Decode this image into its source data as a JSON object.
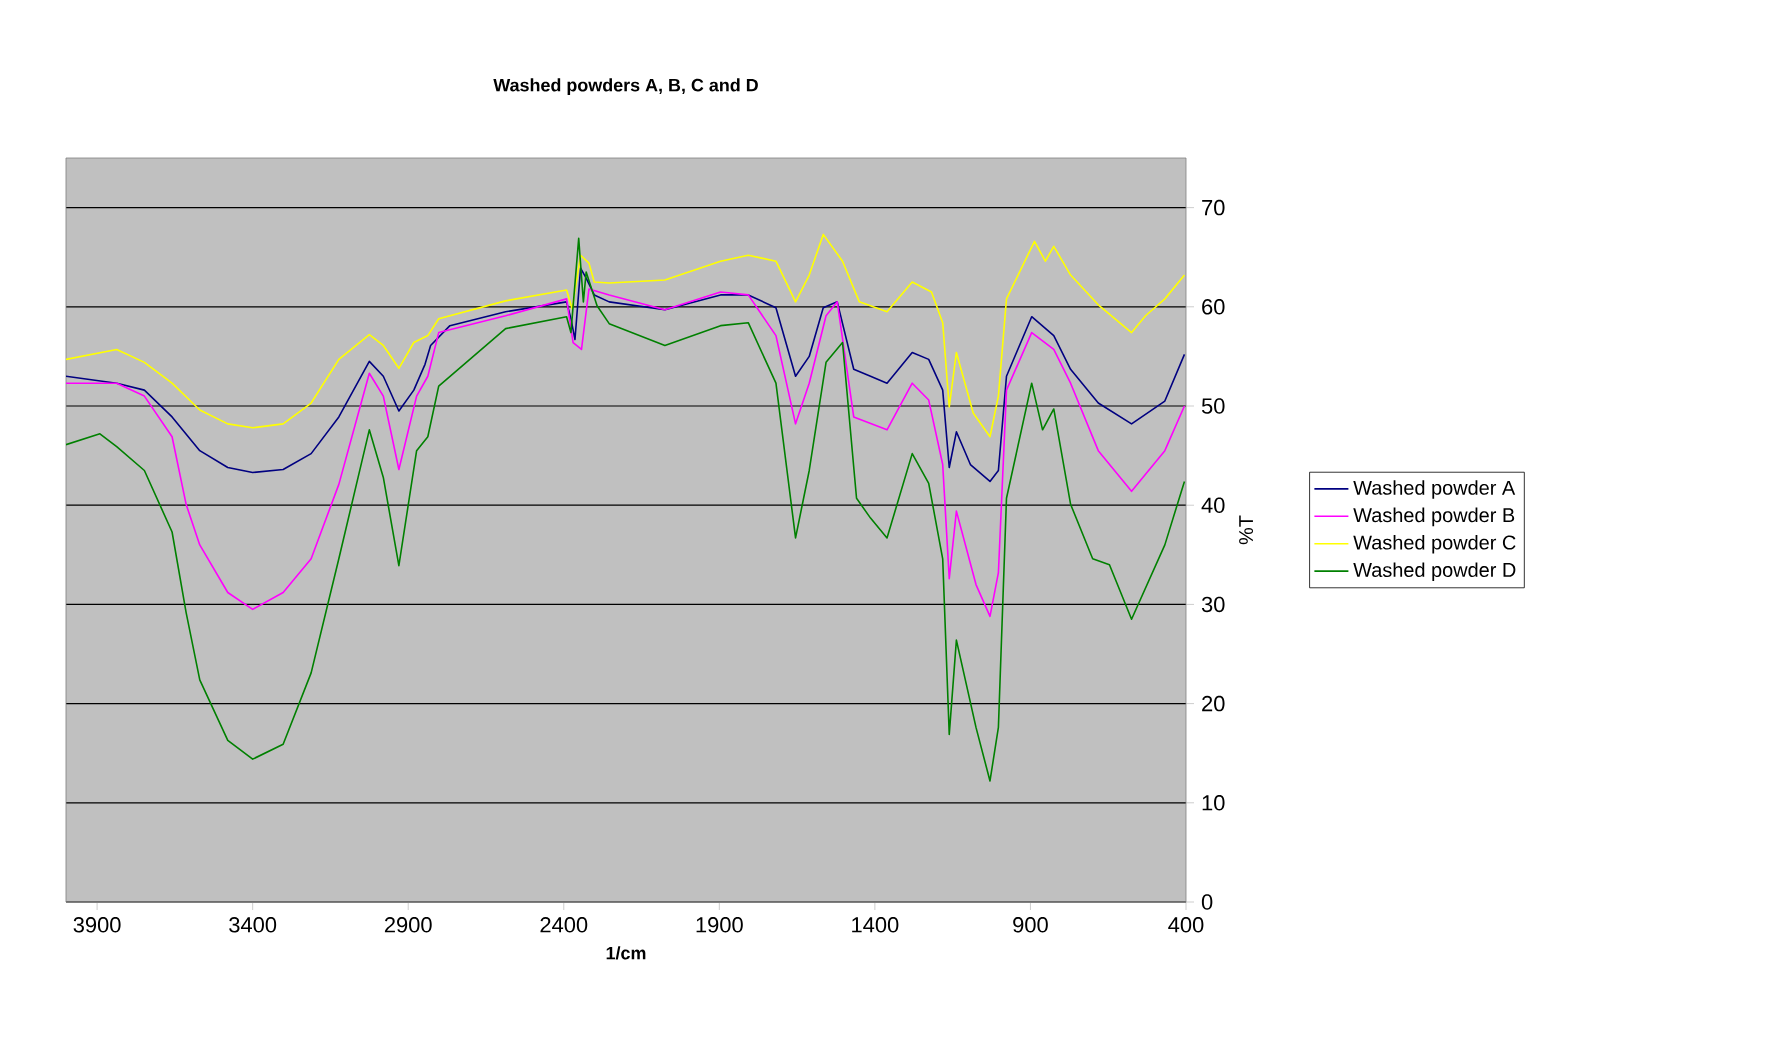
{
  "chart_data": {
    "type": "line",
    "title": "Washed powders A, B, C and D",
    "xlabel": "1/cm",
    "ylabel": "%T",
    "xlim": [
      4000,
      400
    ],
    "xticks": [
      3900,
      3400,
      2900,
      2400,
      1900,
      1400,
      900,
      400
    ],
    "ylim": [
      0,
      75
    ],
    "yticks": [
      0,
      10,
      20,
      30,
      40,
      50,
      60,
      70
    ],
    "grid": "y",
    "legend": "right",
    "marker": "none",
    "line_style": "solid",
    "series": [
      {
        "name": "Washed powder A",
        "color": "#000080",
        "x": [
          4000,
          3837,
          3748,
          3659,
          3570,
          3480,
          3400,
          3302,
          3212,
          3123,
          3025,
          2980,
          2930,
          2882,
          2846,
          2828,
          2766,
          2587,
          2391,
          2377,
          2364,
          2346,
          2328,
          2302,
          2254,
          2075,
          1896,
          1807,
          1718,
          1655,
          1611,
          1566,
          1521,
          1468,
          1414,
          1361,
          1280,
          1227,
          1182,
          1161,
          1138,
          1093,
          1030,
          1003,
          977,
          896,
          825,
          771,
          682,
          575,
          468,
          405
        ],
        "values": [
          53.0,
          52.3,
          51.6,
          48.9,
          45.5,
          43.8,
          43.3,
          43.6,
          45.2,
          48.9,
          54.5,
          53.0,
          49.5,
          51.6,
          54.2,
          56.1,
          58.1,
          59.5,
          60.5,
          58.8,
          56.7,
          63.9,
          62.9,
          61.2,
          60.5,
          59.7,
          61.2,
          61.2,
          59.9,
          53.0,
          55.0,
          59.9,
          60.5,
          53.7,
          53.0,
          52.3,
          55.4,
          54.7,
          51.6,
          43.8,
          47.4,
          44.1,
          42.4,
          43.5,
          53.0,
          59.0,
          57.1,
          53.7,
          50.3,
          48.2,
          50.5,
          55.2
        ]
      },
      {
        "name": "Washed powder B",
        "color": "#ff00ff",
        "x": [
          4000,
          3837,
          3748,
          3659,
          3614,
          3570,
          3480,
          3400,
          3302,
          3212,
          3123,
          3025,
          2980,
          2930,
          2873,
          2837,
          2802,
          2587,
          2391,
          2370,
          2343,
          2319,
          2254,
          2075,
          1896,
          1807,
          1718,
          1655,
          1611,
          1557,
          1521,
          1468,
          1361,
          1280,
          1227,
          1182,
          1161,
          1138,
          1075,
          1030,
          1003,
          977,
          896,
          825,
          771,
          682,
          575,
          468,
          405
        ],
        "values": [
          52.3,
          52.3,
          51.0,
          46.9,
          40.1,
          36.0,
          31.2,
          29.5,
          31.2,
          34.6,
          42.1,
          53.3,
          51.0,
          43.6,
          51.0,
          53.0,
          57.4,
          59.1,
          60.8,
          56.4,
          55.7,
          61.8,
          61.2,
          59.7,
          61.5,
          61.2,
          57.1,
          48.2,
          52.3,
          59.1,
          60.5,
          48.9,
          47.6,
          52.3,
          50.6,
          44.1,
          32.6,
          39.4,
          32.0,
          28.8,
          33.2,
          51.6,
          57.4,
          55.7,
          52.3,
          45.5,
          41.4,
          45.5,
          50.0
        ]
      },
      {
        "name": "Washed powder C",
        "color": "#ffff00",
        "x": [
          4000,
          3837,
          3748,
          3659,
          3570,
          3480,
          3400,
          3302,
          3212,
          3123,
          3025,
          2980,
          2930,
          2882,
          2837,
          2802,
          2587,
          2391,
          2373,
          2346,
          2319,
          2302,
          2254,
          2075,
          1896,
          1807,
          1718,
          1655,
          1611,
          1566,
          1504,
          1450,
          1361,
          1280,
          1218,
          1182,
          1161,
          1138,
          1084,
          1030,
          1003,
          977,
          887,
          852,
          825,
          771,
          682,
          575,
          530,
          468,
          405
        ],
        "values": [
          54.7,
          55.7,
          54.4,
          52.3,
          49.6,
          48.2,
          47.8,
          48.2,
          50.3,
          54.7,
          57.2,
          56.1,
          53.8,
          56.4,
          57.1,
          58.8,
          60.6,
          61.7,
          59.8,
          65.2,
          64.4,
          62.5,
          62.4,
          62.7,
          64.6,
          65.2,
          64.6,
          60.5,
          63.2,
          67.3,
          64.6,
          60.5,
          59.5,
          62.5,
          61.5,
          58.4,
          49.9,
          55.4,
          49.3,
          46.9,
          51.0,
          60.8,
          66.6,
          64.6,
          66.1,
          63.2,
          60.2,
          57.4,
          59.1,
          60.8,
          63.2
        ]
      },
      {
        "name": "Washed powder D",
        "color": "#008000",
        "x": [
          4000,
          3891,
          3837,
          3748,
          3659,
          3614,
          3570,
          3480,
          3400,
          3302,
          3212,
          3123,
          3025,
          2980,
          2930,
          2873,
          2837,
          2802,
          2587,
          2391,
          2377,
          2352,
          2337,
          2328,
          2293,
          2254,
          2075,
          1896,
          1807,
          1718,
          1655,
          1611,
          1557,
          1504,
          1459,
          1414,
          1361,
          1280,
          1227,
          1182,
          1161,
          1138,
          1075,
          1030,
          1003,
          977,
          896,
          861,
          825,
          771,
          700,
          646,
          575,
          468,
          405
        ],
        "values": [
          46.1,
          47.2,
          45.9,
          43.5,
          37.3,
          29.2,
          22.4,
          16.3,
          14.4,
          15.9,
          23.1,
          34.6,
          47.6,
          42.8,
          33.9,
          45.5,
          46.9,
          52.0,
          57.8,
          59.0,
          57.4,
          66.9,
          60.5,
          63.5,
          60.1,
          58.3,
          56.1,
          58.1,
          58.4,
          52.3,
          36.7,
          43.5,
          54.4,
          56.4,
          40.7,
          38.7,
          36.7,
          45.2,
          42.2,
          34.6,
          16.9,
          26.4,
          17.6,
          12.2,
          17.6,
          40.7,
          52.3,
          47.6,
          49.7,
          40.1,
          34.6,
          34.0,
          28.5,
          36.0,
          42.4
        ]
      }
    ]
  }
}
